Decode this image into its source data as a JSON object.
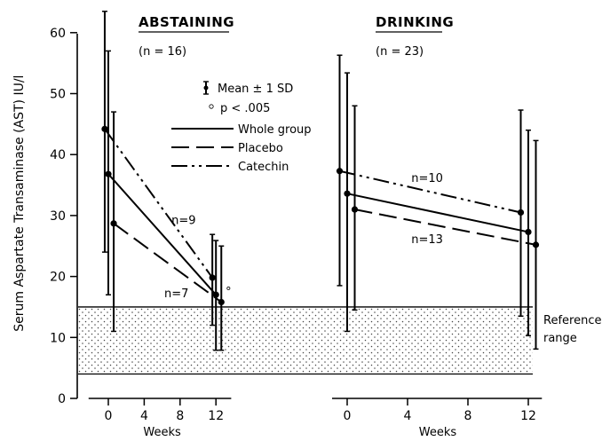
{
  "chart_data": {
    "type": "line",
    "ylabel": "Serum Aspartate Transaminase (AST) IU/l",
    "xlabel": "Weeks",
    "ylim": [
      0,
      65
    ],
    "yticks": [
      0,
      10,
      20,
      30,
      40,
      50,
      60
    ],
    "xticks": [
      0,
      4,
      8,
      12
    ],
    "xlim": [
      -3,
      14
    ],
    "reference_range": {
      "label_line1": "Reference",
      "label_line2": "range",
      "y_low": 4,
      "y_high": 15
    },
    "legend": {
      "error_bar": "Mean ± 1 SD",
      "significance": "p < .005",
      "series": [
        "Whole group",
        "Placebo",
        "Catechin"
      ]
    },
    "panels": [
      {
        "title": "ABSTAINING",
        "subtitle": "(n = 16)",
        "series": [
          {
            "name": "Catechin",
            "style": "dash-dot-dot",
            "x": [
              -0.4,
              11.6
            ],
            "y": [
              44.2,
              19.8
            ],
            "sd_low": [
              24,
              12
            ],
            "sd_high": [
              63.5,
              26.9
            ]
          },
          {
            "name": "Whole group",
            "style": "solid",
            "x": [
              0,
              12
            ],
            "y": [
              36.8,
              17
            ],
            "sd_low": [
              17,
              7.9
            ],
            "sd_high": [
              57,
              25.9
            ]
          },
          {
            "name": "Placebo",
            "style": "dashed",
            "x": [
              0.6,
              12.6
            ],
            "y": [
              28.7,
              15.8
            ],
            "sd_low": [
              11,
              7.9
            ],
            "sd_high": [
              47,
              25
            ]
          }
        ],
        "annotations": [
          {
            "text": "n=9",
            "x": 8.4,
            "y": 28.6
          },
          {
            "text": "n=7",
            "x": 7.6,
            "y": 16.6
          },
          {
            "text": "∘",
            "x": 13.4,
            "y": 17.5
          }
        ]
      },
      {
        "title": "DRINKING",
        "subtitle": "(n = 23)",
        "series": [
          {
            "name": "Catechin",
            "style": "dash-dot-dot",
            "x": [
              -0.5,
              11.5
            ],
            "y": [
              37.3,
              30.5
            ],
            "sd_low": [
              18.5,
              13.5
            ],
            "sd_high": [
              56.3,
              47.3
            ]
          },
          {
            "name": "Whole group",
            "style": "solid",
            "x": [
              0,
              12
            ],
            "y": [
              33.6,
              27.3
            ],
            "sd_low": [
              11,
              10.3
            ],
            "sd_high": [
              53.4,
              44
            ]
          },
          {
            "name": "Placebo",
            "style": "dashed",
            "x": [
              0.5,
              12.5
            ],
            "y": [
              31,
              25.2
            ],
            "sd_low": [
              14.5,
              8.1
            ],
            "sd_high": [
              48,
              42.3
            ]
          }
        ],
        "annotations": [
          {
            "text": "n=10",
            "x": 5.3,
            "y": 35.5
          },
          {
            "text": "n=13",
            "x": 5.3,
            "y": 25.5
          }
        ]
      }
    ]
  }
}
